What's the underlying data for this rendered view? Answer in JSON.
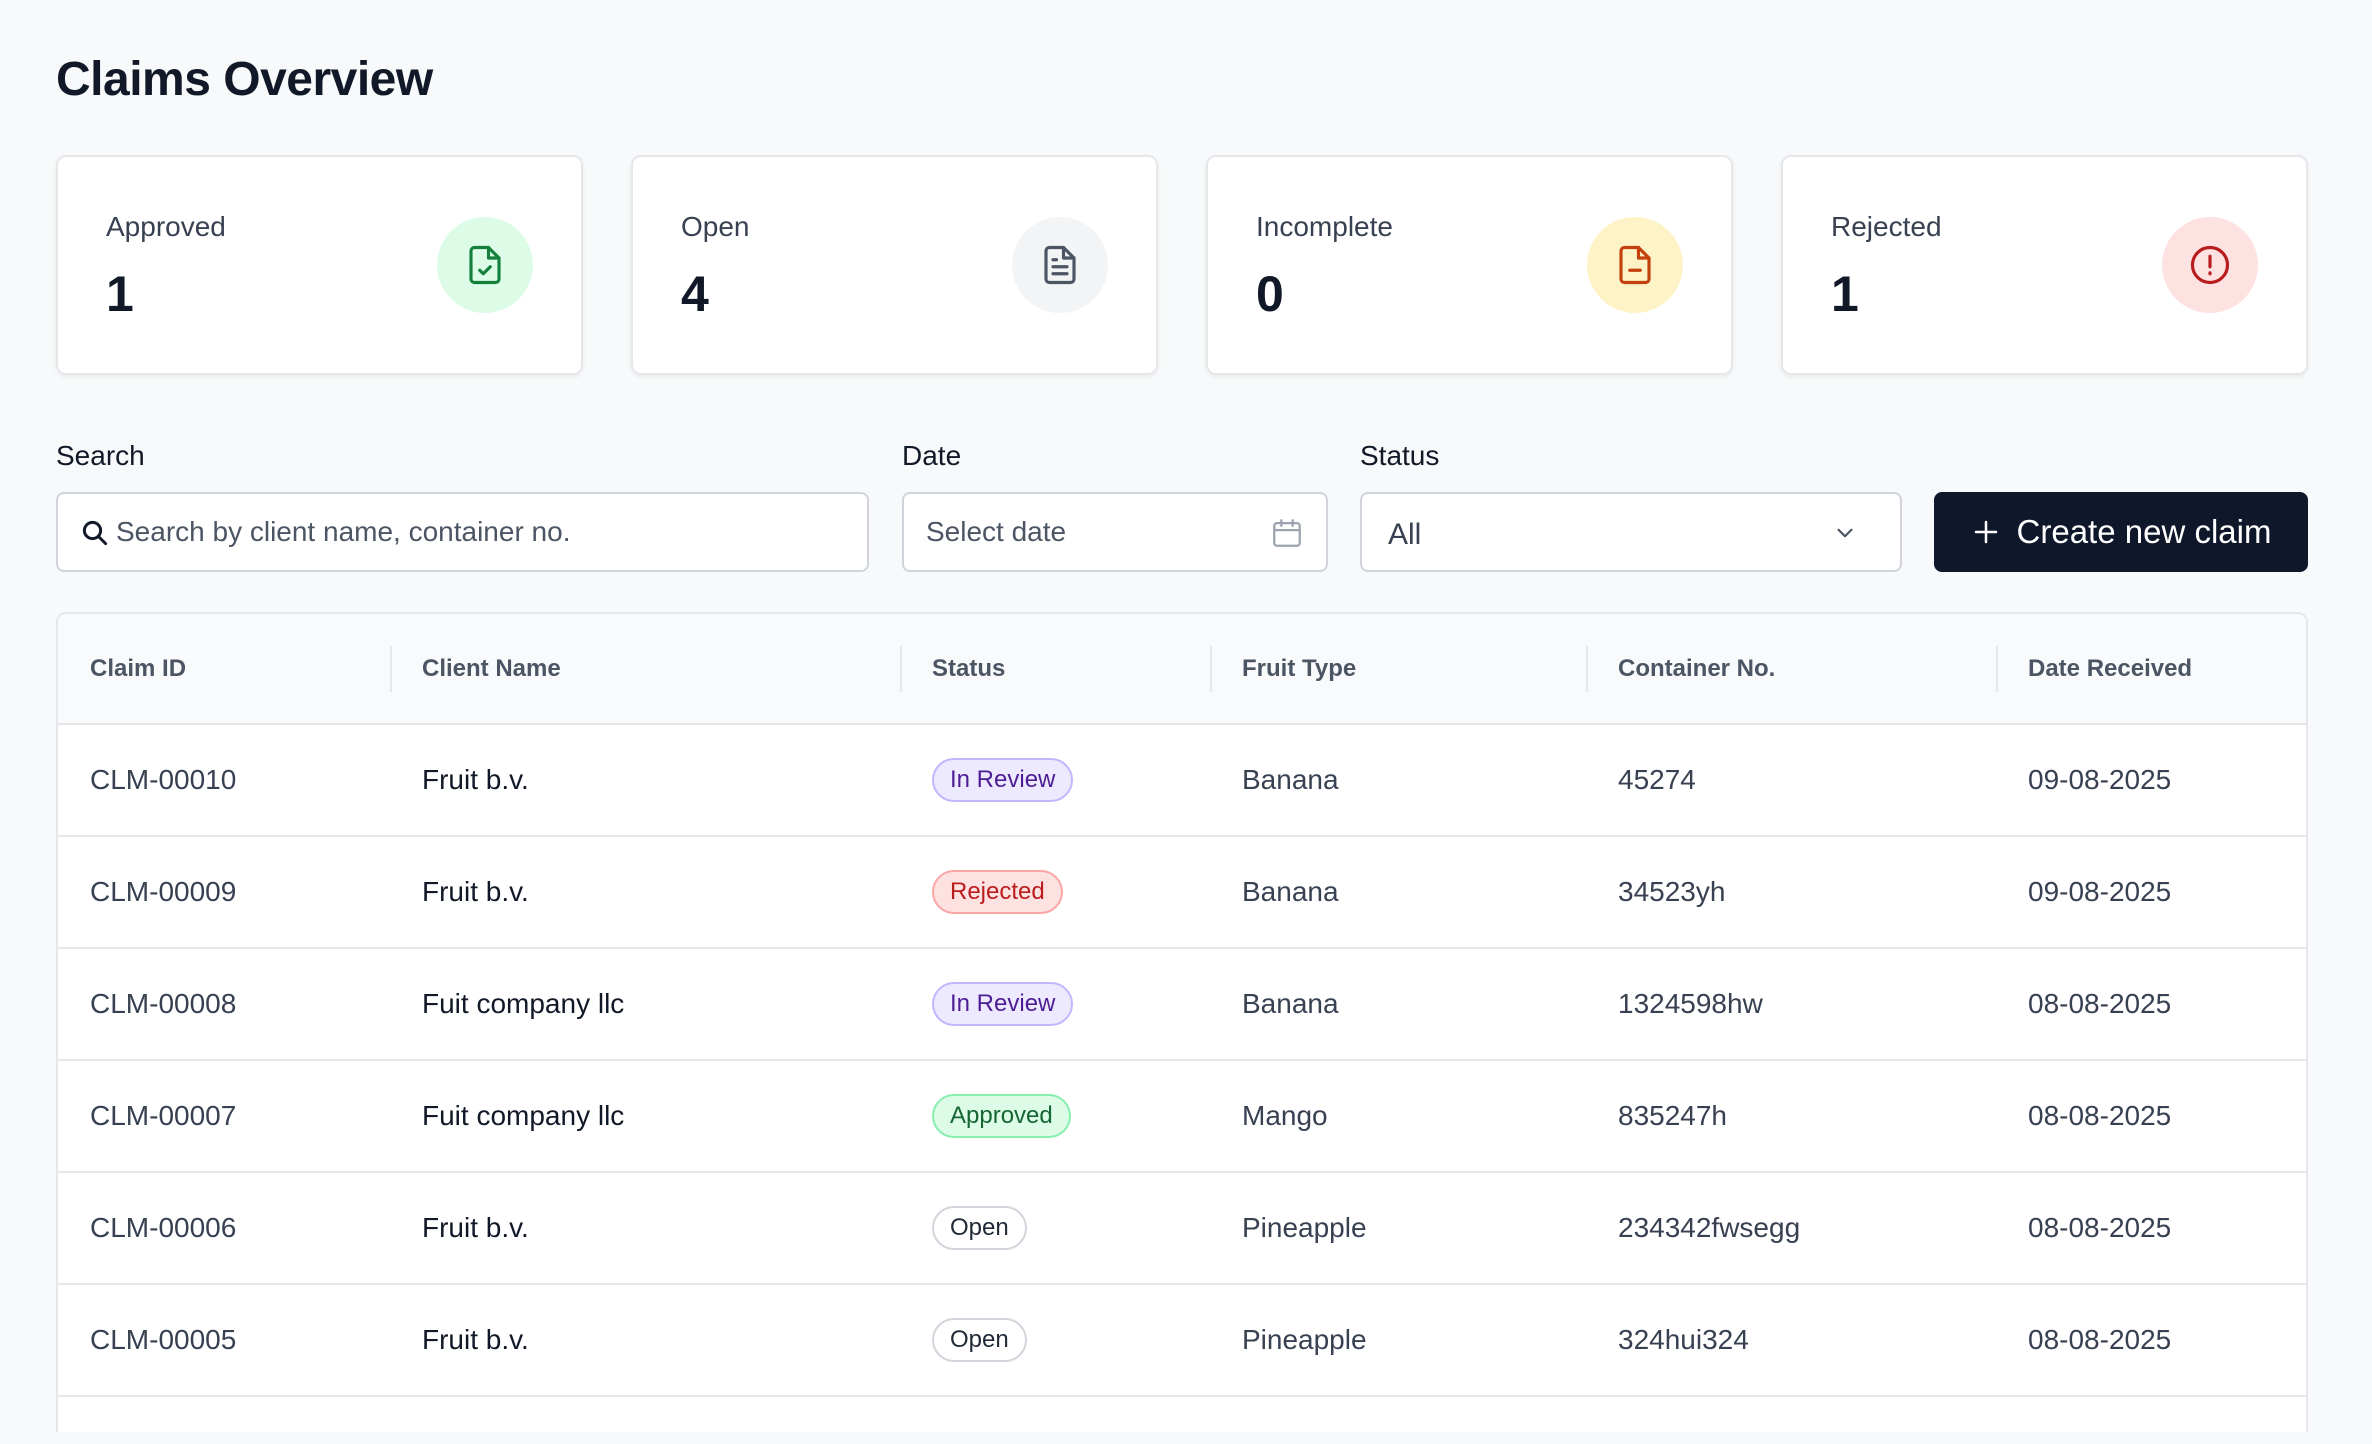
{
  "page": {
    "title": "Claims Overview"
  },
  "stats": [
    {
      "label": "Approved",
      "value": "1",
      "icon": "file-check-icon",
      "color": "#15803d"
    },
    {
      "label": "Open",
      "value": "4",
      "icon": "file-text-icon",
      "color": "#4b5563"
    },
    {
      "label": "Incomplete",
      "value": "0",
      "icon": "file-minus-icon",
      "color": "#c2410c"
    },
    {
      "label": "Rejected",
      "value": "1",
      "icon": "alert-circle-icon",
      "color": "#b91c1c"
    }
  ],
  "filters": {
    "search": {
      "label": "Search",
      "placeholder": "Search by client name, container no."
    },
    "date": {
      "label": "Date",
      "placeholder": "Select date"
    },
    "status": {
      "label": "Status",
      "value": "All"
    },
    "create_label": "Create new claim"
  },
  "table": {
    "columns": [
      "Claim ID",
      "Client Name",
      "Status",
      "Fruit Type",
      "Container No.",
      "Date Received"
    ],
    "rows": [
      {
        "id": "CLM-00010",
        "client": "Fruit b.v.",
        "status": "In Review",
        "status_kind": "in-review",
        "fruit": "Banana",
        "container": "45274",
        "date": "09-08-2025"
      },
      {
        "id": "CLM-00009",
        "client": "Fruit b.v.",
        "status": "Rejected",
        "status_kind": "rejected",
        "fruit": "Banana",
        "container": "34523yh",
        "date": "09-08-2025"
      },
      {
        "id": "CLM-00008",
        "client": "Fuit company llc",
        "status": "In Review",
        "status_kind": "in-review",
        "fruit": "Banana",
        "container": "1324598hw",
        "date": "08-08-2025"
      },
      {
        "id": "CLM-00007",
        "client": "Fuit company llc",
        "status": "Approved",
        "status_kind": "approved",
        "fruit": "Mango",
        "container": "835247h",
        "date": "08-08-2025"
      },
      {
        "id": "CLM-00006",
        "client": "Fruit b.v.",
        "status": "Open",
        "status_kind": "open",
        "fruit": "Pineapple",
        "container": "234342fwsegg",
        "date": "08-08-2025"
      },
      {
        "id": "CLM-00005",
        "client": "Fruit b.v.",
        "status": "Open",
        "status_kind": "open",
        "fruit": "Pineapple",
        "container": "324hui324",
        "date": "08-08-2025"
      }
    ]
  }
}
